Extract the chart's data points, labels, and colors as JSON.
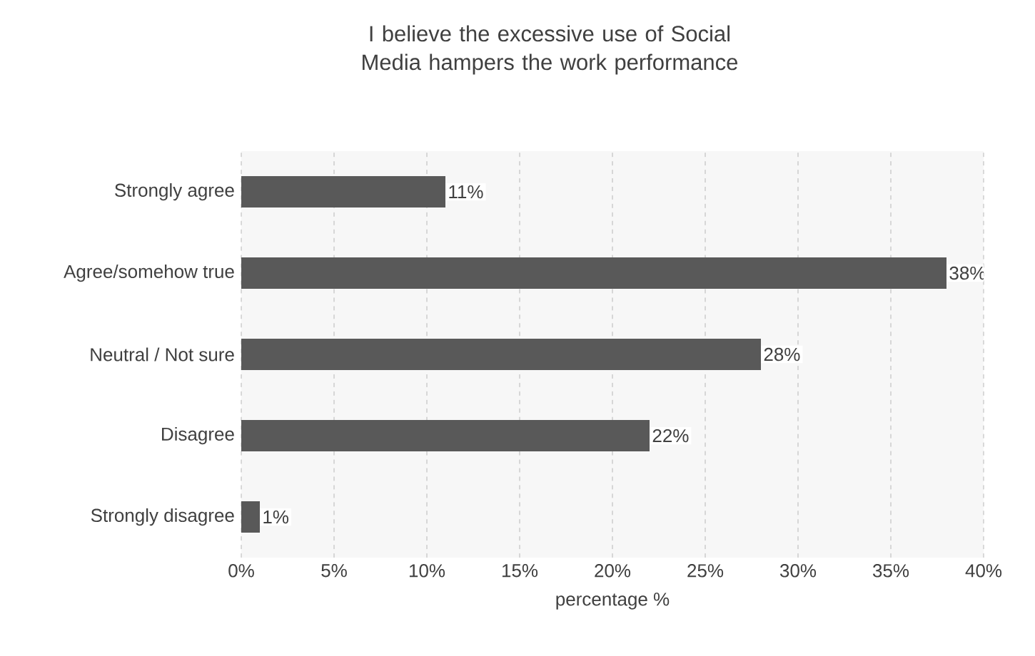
{
  "chart_data": {
    "type": "bar",
    "orientation": "horizontal",
    "title": "I believe the excessive use of Social Media hampers the work performance",
    "xlabel": "percentage %",
    "categories": [
      "Strongly agree",
      "Agree/somehow true",
      "Neutral / Not sure",
      "Disagree",
      "Strongly disagree"
    ],
    "values": [
      11,
      38,
      28,
      22,
      1
    ],
    "value_labels": [
      "11%",
      "38%",
      "28%",
      "22%",
      "1%"
    ],
    "color": "#595959",
    "xlim": [
      0,
      40
    ],
    "xticks": [
      {
        "value": 0,
        "label": "0%"
      },
      {
        "value": 5,
        "label": "5%"
      },
      {
        "value": 10,
        "label": "10%"
      },
      {
        "value": 15,
        "label": "15%"
      },
      {
        "value": 20,
        "label": "20%"
      },
      {
        "value": 25,
        "label": "25%"
      },
      {
        "value": 30,
        "label": "30%"
      },
      {
        "value": 35,
        "label": "35%"
      },
      {
        "value": 40,
        "label": "40%"
      }
    ],
    "grid": "x"
  }
}
